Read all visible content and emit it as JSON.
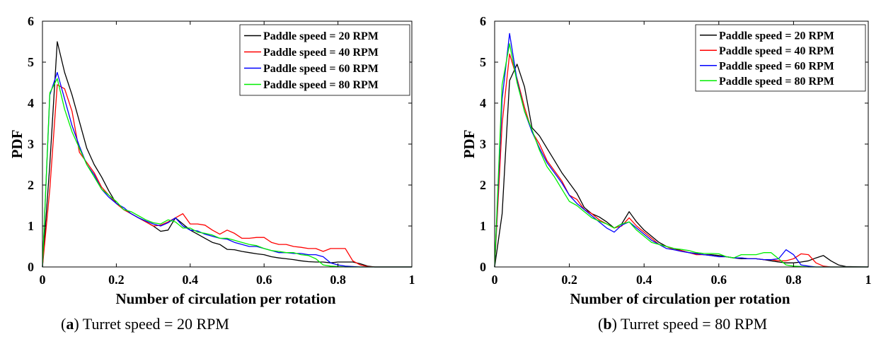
{
  "chart_data": [
    {
      "type": "line",
      "caption_letter": "a",
      "caption_text": " Turret speed = 20 RPM",
      "xlabel": "Number of circulation per rotation",
      "ylabel": "PDF",
      "xlim": [
        0,
        1
      ],
      "ylim": [
        0,
        6
      ],
      "xticks": [
        0,
        0.2,
        0.4,
        0.6,
        0.8,
        1
      ],
      "xtick_labels": [
        "0",
        "0.2",
        "0.4",
        "0.6",
        "0.8",
        "1"
      ],
      "yticks": [
        0,
        1,
        2,
        3,
        4,
        5,
        6
      ],
      "ytick_labels": [
        "0",
        "1",
        "2",
        "3",
        "4",
        "5",
        "6"
      ],
      "legend_position": "top-right",
      "series": [
        {
          "name": "Paddle speed = 20 RPM",
          "color": "#000000",
          "x": [
            0,
            0.02,
            0.04,
            0.06,
            0.08,
            0.1,
            0.12,
            0.14,
            0.16,
            0.18,
            0.2,
            0.22,
            0.24,
            0.26,
            0.28,
            0.3,
            0.32,
            0.34,
            0.36,
            0.38,
            0.4,
            0.42,
            0.44,
            0.46,
            0.48,
            0.5,
            0.52,
            0.54,
            0.56,
            0.58,
            0.6,
            0.62,
            0.64,
            0.66,
            0.68,
            0.7,
            0.72,
            0.74,
            0.76,
            0.78,
            0.8,
            0.82,
            0.84,
            0.86,
            0.88,
            0.9,
            1.0
          ],
          "y": [
            0,
            2.5,
            5.5,
            4.75,
            4.2,
            3.55,
            2.9,
            2.5,
            2.2,
            1.85,
            1.55,
            1.4,
            1.3,
            1.2,
            1.1,
            1.0,
            0.87,
            0.9,
            1.2,
            1.05,
            0.9,
            0.8,
            0.7,
            0.6,
            0.55,
            0.43,
            0.42,
            0.38,
            0.35,
            0.32,
            0.3,
            0.25,
            0.22,
            0.2,
            0.18,
            0.15,
            0.13,
            0.12,
            0.12,
            0.1,
            0.12,
            0.12,
            0.12,
            0.08,
            0.02,
            0,
            0
          ]
        },
        {
          "name": "Paddle speed = 40 RPM",
          "color": "#ff0000",
          "x": [
            0,
            0.02,
            0.04,
            0.06,
            0.08,
            0.1,
            0.12,
            0.14,
            0.16,
            0.18,
            0.2,
            0.22,
            0.24,
            0.26,
            0.28,
            0.3,
            0.32,
            0.34,
            0.36,
            0.38,
            0.4,
            0.42,
            0.44,
            0.46,
            0.48,
            0.5,
            0.52,
            0.54,
            0.56,
            0.58,
            0.6,
            0.62,
            0.64,
            0.66,
            0.68,
            0.7,
            0.72,
            0.74,
            0.76,
            0.78,
            0.8,
            0.82,
            0.84,
            0.86,
            0.88,
            0.9,
            1.0
          ],
          "y": [
            0,
            1.9,
            4.45,
            4.35,
            3.8,
            2.8,
            2.55,
            2.3,
            1.95,
            1.75,
            1.55,
            1.4,
            1.3,
            1.2,
            1.1,
            1.0,
            1.02,
            1.1,
            1.2,
            1.3,
            1.05,
            1.05,
            1.02,
            0.9,
            0.8,
            0.9,
            0.82,
            0.7,
            0.7,
            0.72,
            0.72,
            0.6,
            0.55,
            0.55,
            0.5,
            0.48,
            0.45,
            0.45,
            0.38,
            0.45,
            0.45,
            0.45,
            0.15,
            0.05,
            0.01,
            0,
            0
          ]
        },
        {
          "name": "Paddle speed = 60 RPM",
          "color": "#0000ff",
          "x": [
            0,
            0.02,
            0.04,
            0.06,
            0.08,
            0.1,
            0.12,
            0.14,
            0.16,
            0.18,
            0.2,
            0.22,
            0.24,
            0.26,
            0.28,
            0.3,
            0.32,
            0.34,
            0.36,
            0.38,
            0.4,
            0.42,
            0.44,
            0.46,
            0.48,
            0.5,
            0.52,
            0.54,
            0.56,
            0.58,
            0.6,
            0.62,
            0.64,
            0.66,
            0.68,
            0.7,
            0.72,
            0.74,
            0.76,
            0.78,
            0.8,
            0.82,
            0.84,
            0.86,
            0.88,
            0.9,
            1.0
          ],
          "y": [
            0,
            4.2,
            4.75,
            4.1,
            3.45,
            2.95,
            2.5,
            2.25,
            1.9,
            1.7,
            1.55,
            1.45,
            1.3,
            1.2,
            1.12,
            1.05,
            1.0,
            1.08,
            1.2,
            1.0,
            0.9,
            0.88,
            0.8,
            0.75,
            0.7,
            0.68,
            0.6,
            0.55,
            0.5,
            0.5,
            0.45,
            0.4,
            0.35,
            0.35,
            0.33,
            0.33,
            0.3,
            0.3,
            0.25,
            0.1,
            0.05,
            0.02,
            0.01,
            0,
            0,
            0,
            0
          ]
        },
        {
          "name": "Paddle speed = 80 RPM",
          "color": "#00ee00",
          "x": [
            0,
            0.02,
            0.04,
            0.06,
            0.08,
            0.1,
            0.12,
            0.14,
            0.16,
            0.18,
            0.2,
            0.22,
            0.24,
            0.26,
            0.28,
            0.3,
            0.32,
            0.34,
            0.36,
            0.38,
            0.4,
            0.42,
            0.44,
            0.46,
            0.48,
            0.5,
            0.52,
            0.54,
            0.56,
            0.58,
            0.6,
            0.62,
            0.64,
            0.66,
            0.68,
            0.7,
            0.72,
            0.74,
            0.76,
            0.78,
            0.8,
            0.82,
            0.84,
            0.86,
            0.88,
            0.9,
            1.0
          ],
          "y": [
            0,
            4.25,
            4.6,
            3.85,
            3.3,
            2.9,
            2.5,
            2.2,
            1.9,
            1.75,
            1.6,
            1.4,
            1.35,
            1.25,
            1.15,
            1.08,
            1.05,
            1.15,
            1.1,
            0.95,
            0.95,
            0.85,
            0.82,
            0.78,
            0.7,
            0.7,
            0.65,
            0.6,
            0.55,
            0.52,
            0.45,
            0.4,
            0.38,
            0.35,
            0.35,
            0.3,
            0.28,
            0.2,
            0.05,
            0.02,
            0.01,
            0,
            0,
            0,
            0,
            0,
            0
          ]
        }
      ]
    },
    {
      "type": "line",
      "caption_letter": "b",
      "caption_text": " Turret speed = 80 RPM",
      "xlabel": "Number of circulation per rotation",
      "ylabel": "PDF",
      "xlim": [
        0,
        1
      ],
      "ylim": [
        0,
        6
      ],
      "xticks": [
        0,
        0.2,
        0.4,
        0.6,
        0.8,
        1
      ],
      "xtick_labels": [
        "0",
        "0.2",
        "0.4",
        "0.6",
        "0.8",
        "1"
      ],
      "yticks": [
        0,
        1,
        2,
        3,
        4,
        5,
        6
      ],
      "ytick_labels": [
        "0",
        "1",
        "2",
        "3",
        "4",
        "5",
        "6"
      ],
      "legend_position": "top-right",
      "series": [
        {
          "name": "Paddle speed = 20 RPM",
          "color": "#000000",
          "x": [
            0,
            0.02,
            0.04,
            0.06,
            0.08,
            0.1,
            0.12,
            0.14,
            0.16,
            0.18,
            0.2,
            0.22,
            0.24,
            0.26,
            0.28,
            0.3,
            0.32,
            0.34,
            0.36,
            0.38,
            0.4,
            0.42,
            0.44,
            0.46,
            0.48,
            0.5,
            0.52,
            0.54,
            0.56,
            0.58,
            0.6,
            0.62,
            0.64,
            0.66,
            0.68,
            0.7,
            0.72,
            0.74,
            0.76,
            0.78,
            0.8,
            0.82,
            0.84,
            0.86,
            0.88,
            0.9,
            0.92,
            0.94,
            1.0
          ],
          "y": [
            0,
            1.3,
            4.55,
            4.95,
            4.4,
            3.4,
            3.2,
            2.9,
            2.6,
            2.3,
            2.05,
            1.8,
            1.45,
            1.3,
            1.22,
            1.1,
            0.95,
            1.05,
            1.35,
            1.1,
            0.9,
            0.75,
            0.6,
            0.5,
            0.45,
            0.4,
            0.35,
            0.33,
            0.3,
            0.3,
            0.28,
            0.25,
            0.22,
            0.2,
            0.2,
            0.2,
            0.18,
            0.15,
            0.12,
            0.1,
            0.1,
            0.12,
            0.15,
            0.22,
            0.28,
            0.15,
            0.05,
            0.01,
            0
          ]
        },
        {
          "name": "Paddle speed = 40 RPM",
          "color": "#ff0000",
          "x": [
            0,
            0.02,
            0.04,
            0.06,
            0.08,
            0.1,
            0.12,
            0.14,
            0.16,
            0.18,
            0.2,
            0.22,
            0.24,
            0.26,
            0.28,
            0.3,
            0.32,
            0.34,
            0.36,
            0.38,
            0.4,
            0.42,
            0.44,
            0.46,
            0.48,
            0.5,
            0.52,
            0.54,
            0.56,
            0.58,
            0.6,
            0.62,
            0.64,
            0.66,
            0.68,
            0.7,
            0.72,
            0.74,
            0.76,
            0.78,
            0.8,
            0.82,
            0.84,
            0.86,
            0.88,
            0.9,
            1.0
          ],
          "y": [
            0,
            3.5,
            5.2,
            4.6,
            3.9,
            3.3,
            3.0,
            2.6,
            2.35,
            2.1,
            1.75,
            1.65,
            1.4,
            1.3,
            1.15,
            1.05,
            0.95,
            1.0,
            1.2,
            1.0,
            0.85,
            0.7,
            0.55,
            0.5,
            0.42,
            0.4,
            0.35,
            0.3,
            0.3,
            0.28,
            0.25,
            0.25,
            0.22,
            0.22,
            0.2,
            0.2,
            0.18,
            0.18,
            0.15,
            0.15,
            0.2,
            0.32,
            0.3,
            0.1,
            0.02,
            0,
            0
          ]
        },
        {
          "name": "Paddle speed = 60 RPM",
          "color": "#0000ff",
          "x": [
            0,
            0.02,
            0.04,
            0.06,
            0.08,
            0.1,
            0.12,
            0.14,
            0.16,
            0.18,
            0.2,
            0.22,
            0.24,
            0.26,
            0.28,
            0.3,
            0.32,
            0.34,
            0.36,
            0.38,
            0.4,
            0.42,
            0.44,
            0.46,
            0.48,
            0.5,
            0.52,
            0.54,
            0.56,
            0.58,
            0.6,
            0.62,
            0.64,
            0.66,
            0.68,
            0.7,
            0.72,
            0.74,
            0.76,
            0.78,
            0.8,
            0.82,
            0.84,
            0.86,
            0.88,
            0.9,
            1.0
          ],
          "y": [
            0,
            4.1,
            5.7,
            4.55,
            3.8,
            3.3,
            2.9,
            2.55,
            2.3,
            2.05,
            1.75,
            1.55,
            1.4,
            1.25,
            1.1,
            0.95,
            0.85,
            1.02,
            1.1,
            0.95,
            0.8,
            0.65,
            0.55,
            0.45,
            0.42,
            0.38,
            0.35,
            0.32,
            0.3,
            0.28,
            0.25,
            0.25,
            0.22,
            0.22,
            0.2,
            0.2,
            0.18,
            0.18,
            0.2,
            0.42,
            0.3,
            0.05,
            0.02,
            0,
            0,
            0,
            0
          ]
        },
        {
          "name": "Paddle speed = 80 RPM",
          "color": "#00ee00",
          "x": [
            0,
            0.02,
            0.04,
            0.06,
            0.08,
            0.1,
            0.12,
            0.14,
            0.16,
            0.18,
            0.2,
            0.22,
            0.24,
            0.26,
            0.28,
            0.3,
            0.32,
            0.34,
            0.36,
            0.38,
            0.4,
            0.42,
            0.44,
            0.46,
            0.48,
            0.5,
            0.52,
            0.54,
            0.56,
            0.58,
            0.6,
            0.62,
            0.64,
            0.66,
            0.68,
            0.7,
            0.72,
            0.74,
            0.76,
            0.78,
            0.8,
            0.82,
            0.84,
            0.86,
            0.88,
            0.9,
            1.0
          ],
          "y": [
            0,
            4.45,
            5.45,
            4.5,
            3.8,
            3.35,
            2.85,
            2.45,
            2.2,
            1.9,
            1.6,
            1.5,
            1.35,
            1.2,
            1.12,
            1.05,
            0.95,
            1.05,
            1.1,
            0.9,
            0.75,
            0.6,
            0.55,
            0.5,
            0.45,
            0.43,
            0.4,
            0.35,
            0.33,
            0.33,
            0.32,
            0.25,
            0.22,
            0.3,
            0.3,
            0.3,
            0.35,
            0.35,
            0.2,
            0.05,
            0.02,
            0.01,
            0,
            0,
            0,
            0,
            0
          ]
        }
      ]
    }
  ]
}
